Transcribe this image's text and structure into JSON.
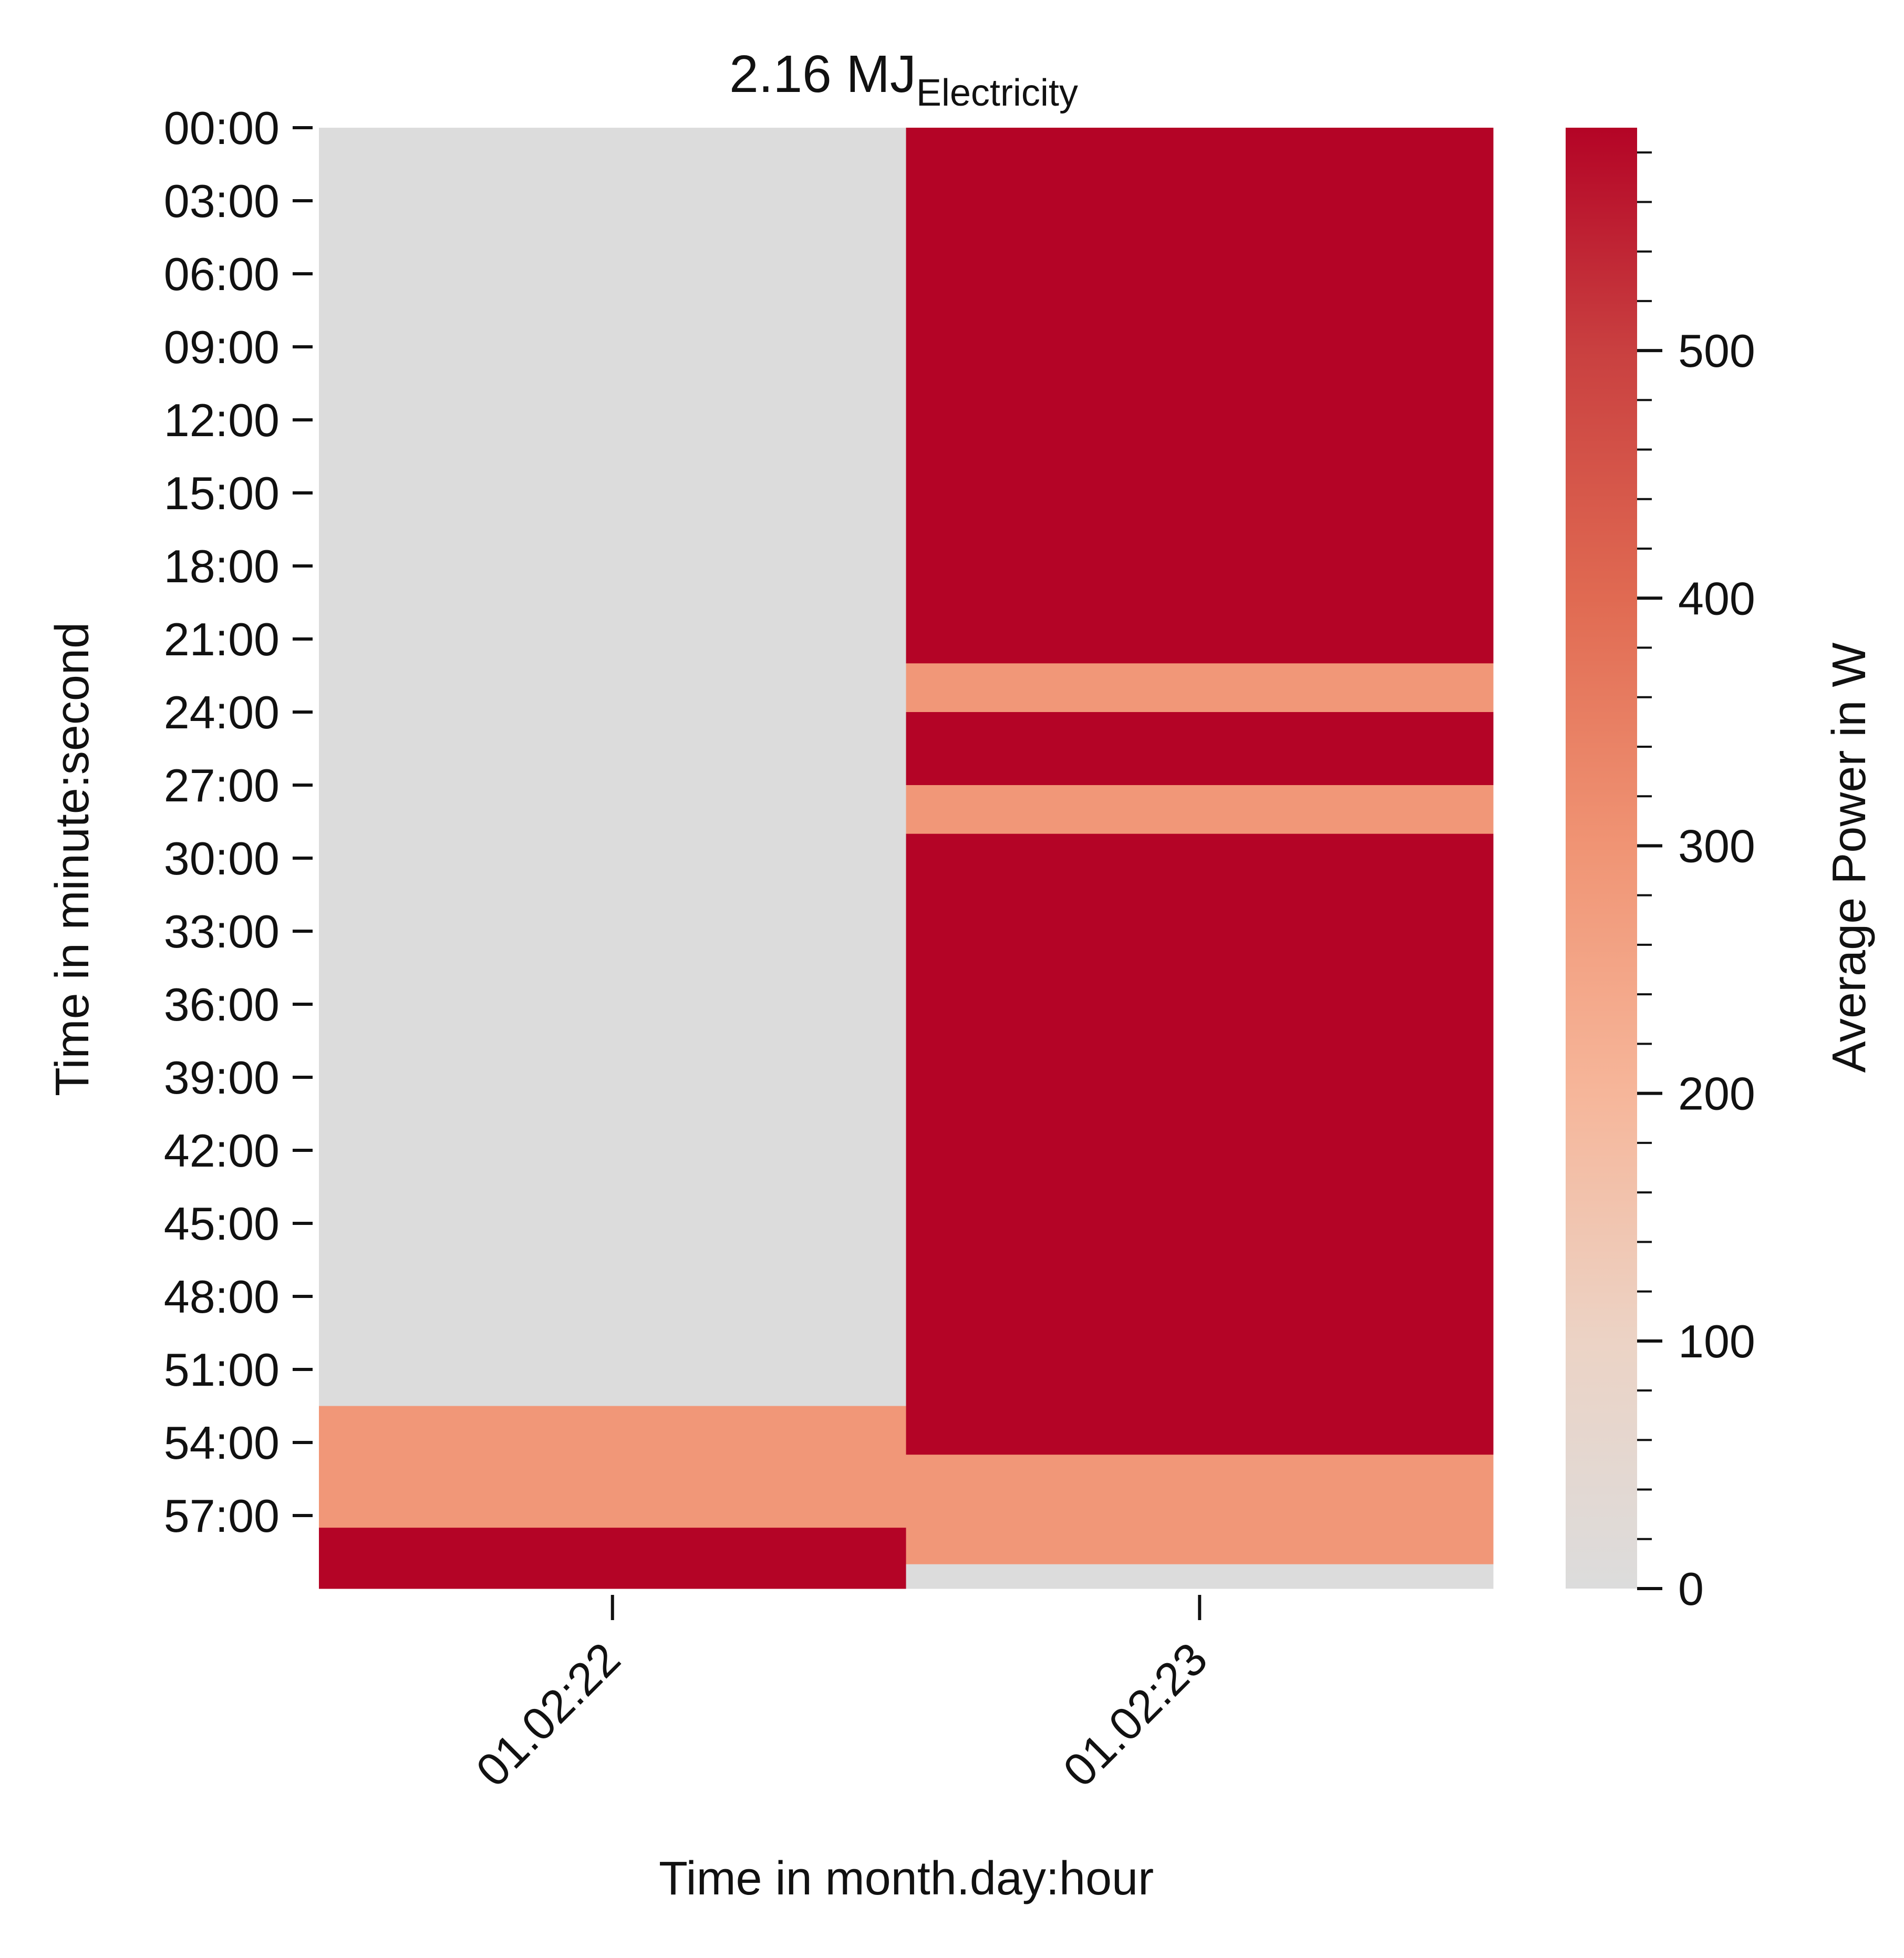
{
  "chart_data": {
    "type": "heatmap",
    "title": "2.16 MJ",
    "title_subscript": "Electricity",
    "xlabel": "Time in month.day:hour",
    "ylabel": "Time in minute:second",
    "x_categories": [
      "01.02:22",
      "01.02:23"
    ],
    "y_tick_labels": [
      "00:00",
      "03:00",
      "06:00",
      "09:00",
      "12:00",
      "15:00",
      "18:00",
      "21:00",
      "24:00",
      "27:00",
      "30:00",
      "33:00",
      "36:00",
      "39:00",
      "42:00",
      "45:00",
      "48:00",
      "51:00",
      "54:00",
      "57:00"
    ],
    "y_unit_minutes": [
      0,
      60
    ],
    "colorbar": {
      "label": "Average Power in W",
      "min": 0,
      "max": 590,
      "ticks": [
        0,
        100,
        200,
        300,
        400,
        500
      ],
      "tick_labels": [
        "0",
        "100",
        "200",
        "300",
        "400",
        "500"
      ]
    },
    "columns": [
      {
        "name": "01.02:22",
        "segments": [
          {
            "start_min": 0,
            "end_min": 52.5,
            "value": 0
          },
          {
            "start_min": 52.5,
            "end_min": 57.5,
            "value": 290
          },
          {
            "start_min": 57.5,
            "end_min": 60,
            "value": 590
          }
        ]
      },
      {
        "name": "01.02:23",
        "segments": [
          {
            "start_min": 0,
            "end_min": 22,
            "value": 590
          },
          {
            "start_min": 22,
            "end_min": 24,
            "value": 290
          },
          {
            "start_min": 24,
            "end_min": 27,
            "value": 590
          },
          {
            "start_min": 27,
            "end_min": 29,
            "value": 290
          },
          {
            "start_min": 29,
            "end_min": 54.5,
            "value": 590
          },
          {
            "start_min": 54.5,
            "end_min": 59,
            "value": 290
          },
          {
            "start_min": 59,
            "end_min": 60,
            "value": 0
          }
        ]
      }
    ],
    "colormap": [
      {
        "value": 0,
        "color": "#dcdcdc"
      },
      {
        "value": 100,
        "color": "#ecd3c5"
      },
      {
        "value": 200,
        "color": "#f6b69a"
      },
      {
        "value": 300,
        "color": "#f09474"
      },
      {
        "value": 400,
        "color": "#e06a52"
      },
      {
        "value": 500,
        "color": "#c94040"
      },
      {
        "value": 590,
        "color": "#b40426"
      }
    ]
  }
}
